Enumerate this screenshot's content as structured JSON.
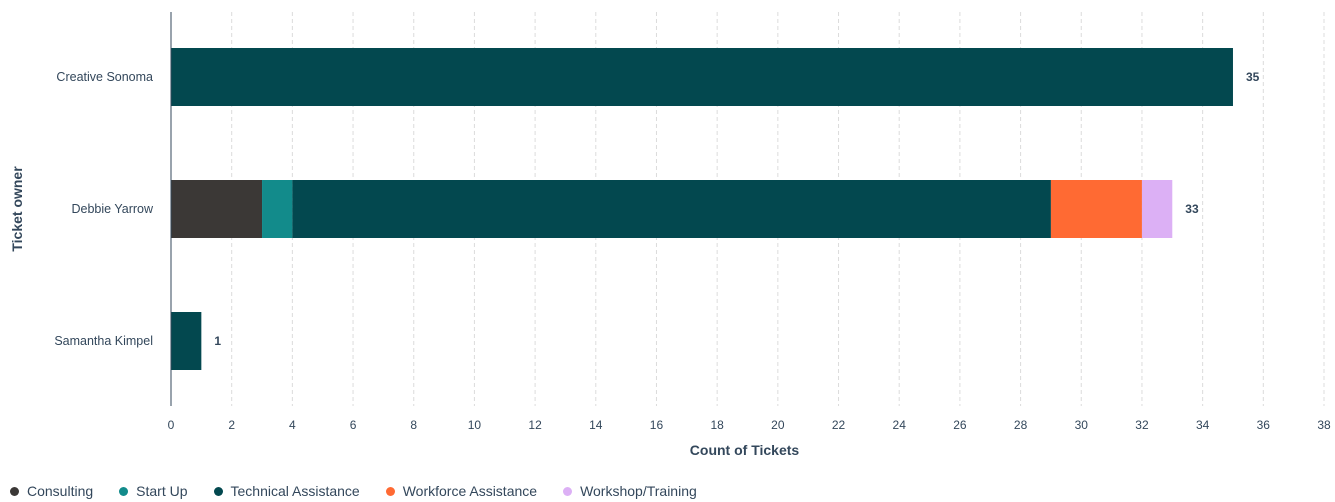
{
  "chart_data": {
    "type": "bar",
    "orientation": "horizontal",
    "stacked": true,
    "categories": [
      "Creative Sonoma",
      "Debbie Yarrow",
      "Samantha Kimpel"
    ],
    "series": [
      {
        "name": "Consulting",
        "color": "#3b3836",
        "values": [
          0,
          3,
          0
        ]
      },
      {
        "name": "Start Up",
        "color": "#128b8b",
        "values": [
          0,
          1,
          0
        ]
      },
      {
        "name": "Technical Assistance",
        "color": "#03484f",
        "values": [
          35,
          25,
          1
        ]
      },
      {
        "name": "Workforce Assistance",
        "color": "#ff6a33",
        "values": [
          0,
          3,
          0
        ]
      },
      {
        "name": "Workshop/Training",
        "color": "#dcb0f5",
        "values": [
          0,
          1,
          0
        ]
      }
    ],
    "totals": [
      35,
      33,
      1
    ],
    "xlabel": "Count of Tickets",
    "ylabel": "Ticket owner",
    "xlim": [
      0,
      38
    ],
    "xticks": [
      0,
      2,
      4,
      6,
      8,
      10,
      12,
      14,
      16,
      18,
      20,
      22,
      24,
      26,
      28,
      30,
      32,
      34,
      36,
      38
    ],
    "grid": true,
    "legend_position": "bottom-left"
  }
}
